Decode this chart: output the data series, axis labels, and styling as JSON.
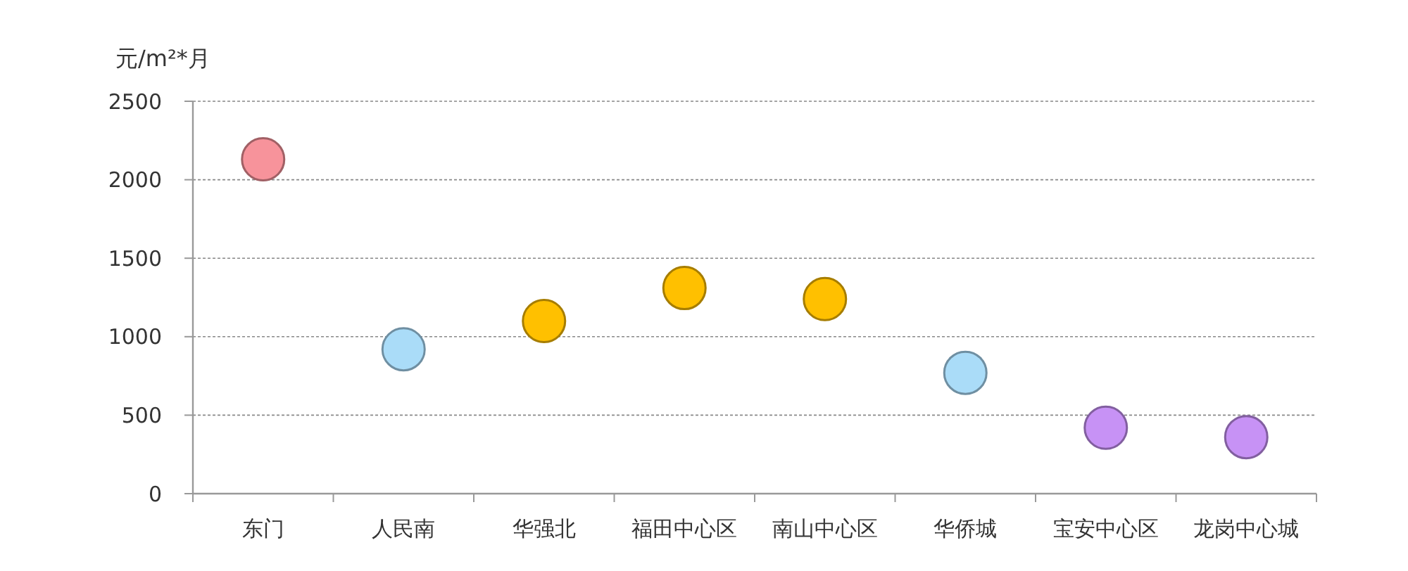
{
  "chart_data": {
    "type": "scatter",
    "ylabel": "元/m²*月",
    "categories": [
      "东门",
      "人民南",
      "华强北",
      "福田中心区",
      "南山中心区",
      "华侨城",
      "宝安中心区",
      "龙岗中心城"
    ],
    "values": [
      2130,
      920,
      1100,
      1310,
      1240,
      770,
      420,
      360
    ],
    "colors": [
      "#f7939b",
      "#aadcf8",
      "#ffc000",
      "#ffc000",
      "#ffc000",
      "#aadcf8",
      "#c792f5",
      "#c792f5"
    ],
    "ylim": [
      0,
      2500
    ],
    "yticks": [
      0,
      500,
      1000,
      1500,
      2000,
      2500
    ],
    "grid": "y",
    "marker": "circle"
  }
}
